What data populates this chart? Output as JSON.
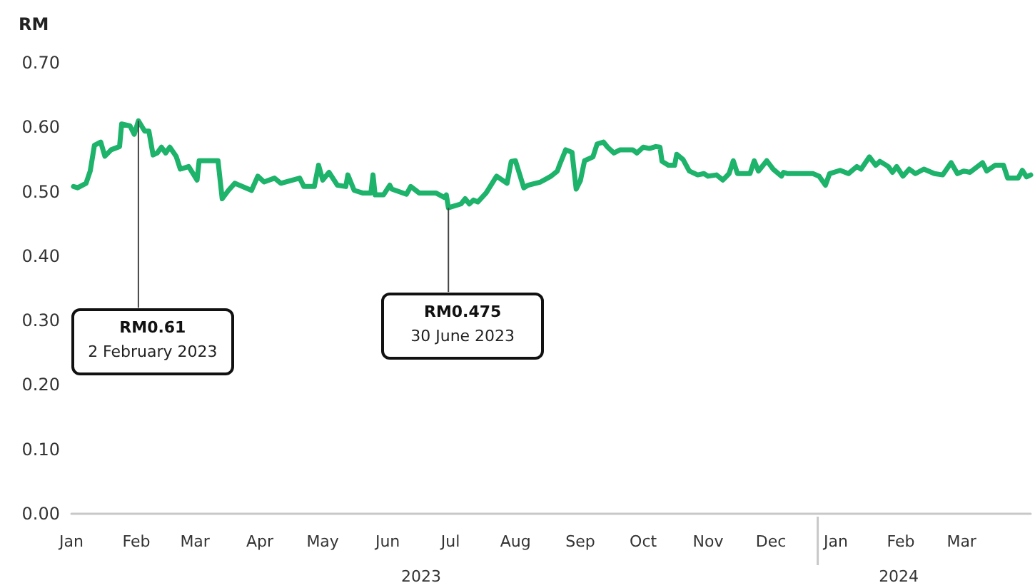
{
  "chart_data": {
    "type": "line",
    "ylabel": "RM",
    "color": "#1db36b",
    "x": [
      "2023-01-02",
      "2023-01-04",
      "2023-01-08",
      "2023-01-10",
      "2023-01-12",
      "2023-01-15",
      "2023-01-17",
      "2023-01-20",
      "2023-01-24",
      "2023-01-25",
      "2023-01-29",
      "2023-01-31",
      "2023-02-02",
      "2023-02-05",
      "2023-02-07",
      "2023-02-09",
      "2023-02-11",
      "2023-02-13",
      "2023-02-15",
      "2023-02-17",
      "2023-02-20",
      "2023-02-22",
      "2023-02-26",
      "2023-03-02",
      "2023-03-03",
      "2023-03-12",
      "2023-03-14",
      "2023-03-17",
      "2023-03-20",
      "2023-03-28",
      "2023-03-31",
      "2023-04-03",
      "2023-04-08",
      "2023-04-11",
      "2023-04-20",
      "2023-04-22",
      "2023-04-27",
      "2023-04-29",
      "2023-05-01",
      "2023-05-04",
      "2023-05-08",
      "2023-05-12",
      "2023-05-13",
      "2023-05-16",
      "2023-05-20",
      "2023-05-24",
      "2023-05-25",
      "2023-05-26",
      "2023-05-30",
      "2023-06-02",
      "2023-06-03",
      "2023-06-10",
      "2023-06-12",
      "2023-06-16",
      "2023-06-24",
      "2023-06-28",
      "2023-06-29",
      "2023-06-30",
      "2023-07-06",
      "2023-07-08",
      "2023-07-10",
      "2023-07-12",
      "2023-07-14",
      "2023-07-18",
      "2023-07-23",
      "2023-07-28",
      "2023-07-30",
      "2023-08-01",
      "2023-08-05",
      "2023-08-07",
      "2023-08-13",
      "2023-08-18",
      "2023-08-21",
      "2023-08-22",
      "2023-08-25",
      "2023-08-28",
      "2023-08-30",
      "2023-09-01",
      "2023-09-03",
      "2023-09-07",
      "2023-09-09",
      "2023-09-12",
      "2023-09-14",
      "2023-09-17",
      "2023-09-20",
      "2023-09-26",
      "2023-09-28",
      "2023-10-01",
      "2023-10-04",
      "2023-10-07",
      "2023-10-09",
      "2023-10-10",
      "2023-10-13",
      "2023-10-16",
      "2023-10-17",
      "2023-10-20",
      "2023-10-23",
      "2023-10-27",
      "2023-10-30",
      "2023-11-01",
      "2023-11-05",
      "2023-11-08",
      "2023-11-11",
      "2023-11-13",
      "2023-11-15",
      "2023-11-21",
      "2023-11-23",
      "2023-11-25",
      "2023-11-29",
      "2023-12-02",
      "2023-12-06",
      "2023-12-07",
      "2023-12-09",
      "2023-12-21",
      "2023-12-24",
      "2023-12-27",
      "2023-12-29",
      "2024-01-03",
      "2024-01-07",
      "2024-01-11",
      "2024-01-13",
      "2024-01-17",
      "2024-01-20",
      "2024-01-22",
      "2024-01-26",
      "2024-01-28",
      "2024-01-30",
      "2024-02-02",
      "2024-02-05",
      "2024-02-08",
      "2024-02-12",
      "2024-02-17",
      "2024-02-21",
      "2024-02-25",
      "2024-02-28",
      "2024-03-02",
      "2024-03-05",
      "2024-03-11",
      "2024-03-13",
      "2024-03-17",
      "2024-03-21",
      "2024-03-23",
      "2024-03-28",
      "2024-03-30",
      "2024-04-01",
      "2024-04-03"
    ],
    "values": [
      0.508,
      0.506,
      0.513,
      0.532,
      0.572,
      0.577,
      0.555,
      0.565,
      0.57,
      0.605,
      0.602,
      0.589,
      0.61,
      0.594,
      0.594,
      0.557,
      0.56,
      0.569,
      0.56,
      0.569,
      0.555,
      0.535,
      0.539,
      0.518,
      0.548,
      0.548,
      0.489,
      0.502,
      0.513,
      0.502,
      0.524,
      0.515,
      0.521,
      0.513,
      0.521,
      0.508,
      0.508,
      0.541,
      0.518,
      0.53,
      0.51,
      0.508,
      0.526,
      0.502,
      0.498,
      0.498,
      0.526,
      0.495,
      0.495,
      0.51,
      0.504,
      0.496,
      0.508,
      0.498,
      0.498,
      0.491,
      0.495,
      0.475,
      0.481,
      0.489,
      0.481,
      0.487,
      0.484,
      0.498,
      0.524,
      0.513,
      0.547,
      0.548,
      0.506,
      0.51,
      0.515,
      0.524,
      0.532,
      0.541,
      0.565,
      0.561,
      0.504,
      0.517,
      0.548,
      0.554,
      0.574,
      0.577,
      0.569,
      0.56,
      0.565,
      0.565,
      0.56,
      0.569,
      0.567,
      0.57,
      0.569,
      0.547,
      0.541,
      0.541,
      0.558,
      0.55,
      0.532,
      0.526,
      0.528,
      0.524,
      0.526,
      0.518,
      0.528,
      0.548,
      0.528,
      0.528,
      0.548,
      0.532,
      0.548,
      0.535,
      0.524,
      0.53,
      0.528,
      0.528,
      0.524,
      0.51,
      0.528,
      0.533,
      0.528,
      0.539,
      0.535,
      0.554,
      0.541,
      0.547,
      0.539,
      0.53,
      0.539,
      0.524,
      0.535,
      0.528,
      0.535,
      0.528,
      0.526,
      0.545,
      0.528,
      0.532,
      0.53,
      0.545,
      0.532,
      0.541,
      0.541,
      0.521,
      0.521,
      0.533,
      0.523,
      0.526
    ],
    "xlim": [
      "2023-01-01",
      "2024-04-03"
    ],
    "xticks": [
      {
        "value": "2023-01-01",
        "label": "Jan"
      },
      {
        "value": "2023-02-01",
        "label": "Feb"
      },
      {
        "value": "2023-03-01",
        "label": "Mar"
      },
      {
        "value": "2023-04-01",
        "label": "Apr"
      },
      {
        "value": "2023-05-01",
        "label": "May"
      },
      {
        "value": "2023-06-01",
        "label": "Jun"
      },
      {
        "value": "2023-07-01",
        "label": "Jul"
      },
      {
        "value": "2023-08-01",
        "label": "Aug"
      },
      {
        "value": "2023-09-01",
        "label": "Sep"
      },
      {
        "value": "2023-10-01",
        "label": "Oct"
      },
      {
        "value": "2023-11-01",
        "label": "Nov"
      },
      {
        "value": "2023-12-01",
        "label": "Dec"
      },
      {
        "value": "2024-01-01",
        "label": "Jan"
      },
      {
        "value": "2024-02-01",
        "label": "Feb"
      },
      {
        "value": "2024-03-01",
        "label": "Mar"
      }
    ],
    "ylim": [
      0,
      0.7
    ],
    "yticks": [
      {
        "value": 0,
        "label": "0.00"
      },
      {
        "value": 0.1,
        "label": "0.10"
      },
      {
        "value": 0.2,
        "label": "0.20"
      },
      {
        "value": 0.3,
        "label": "0.30"
      },
      {
        "value": 0.4,
        "label": "0.40"
      },
      {
        "value": 0.5,
        "label": "0.50"
      },
      {
        "value": 0.6,
        "label": "0.60"
      },
      {
        "value": 0.7,
        "label": "0.70"
      }
    ],
    "grid": false,
    "marker": "none",
    "line_style": "solid",
    "annotations": [
      {
        "text": "RM0.61\n2 February 2023",
        "x": "2023-02-02",
        "y": 0.61
      },
      {
        "text": "RM0.475\n30 June 2023",
        "x": "2023-06-30",
        "y": 0.475
      },
      "2023",
      "2024"
    ]
  }
}
